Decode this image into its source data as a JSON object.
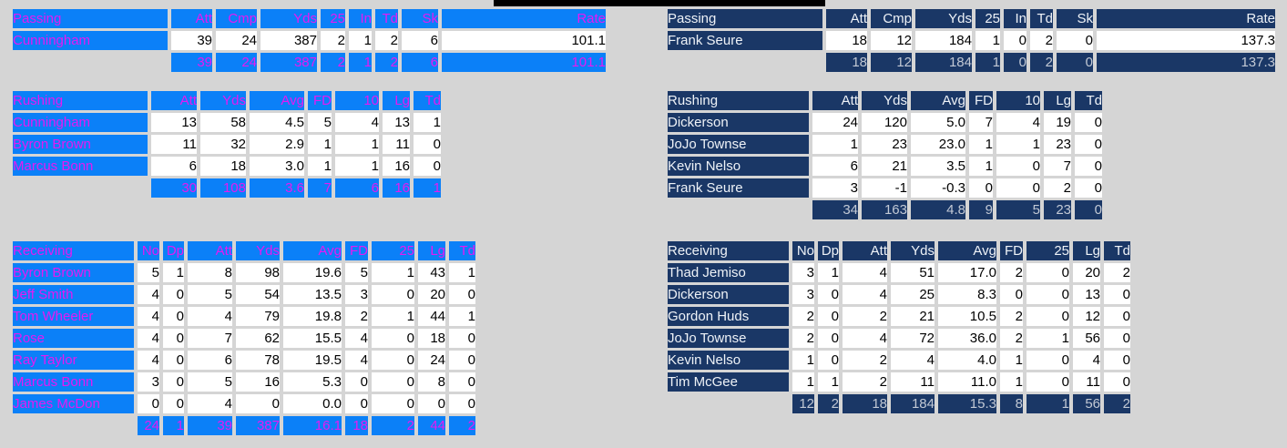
{
  "colors": {
    "background": "#d5d5d5",
    "top_bar": "#000000",
    "left_header_bg": "#0b80f8",
    "left_header_text": "#e619f2",
    "right_header_bg": "#1a3766",
    "right_header_text": "#eef2f7",
    "right_totals_text": "#c2c9d5",
    "data_cell_bg": "#ffffff",
    "data_cell_text": "#000000"
  },
  "teams": [
    {
      "side": "left",
      "tables": [
        {
          "title": "Passing",
          "columns": [
            "Att",
            "Cmp",
            "Yds",
            "25",
            "In",
            "Td",
            "Sk",
            "Rate"
          ],
          "rows": [
            {
              "name": "Cunningham",
              "values": [
                "39",
                "24",
                "387",
                "2",
                "1",
                "2",
                "6",
                "101.1"
              ]
            }
          ],
          "totals": [
            "39",
            "24",
            "387",
            "2",
            "1",
            "2",
            "6",
            "101.1"
          ]
        },
        {
          "title": "Rushing",
          "columns": [
            "Att",
            "Yds",
            "Avg",
            "FD",
            "10",
            "Lg",
            "Td"
          ],
          "rows": [
            {
              "name": "Cunningham",
              "values": [
                "13",
                "58",
                "4.5",
                "5",
                "4",
                "13",
                "1"
              ]
            },
            {
              "name": "Byron Brown",
              "values": [
                "11",
                "32",
                "2.9",
                "1",
                "1",
                "11",
                "0"
              ]
            },
            {
              "name": "Marcus Bonn",
              "values": [
                "6",
                "18",
                "3.0",
                "1",
                "1",
                "16",
                "0"
              ]
            }
          ],
          "totals": [
            "30",
            "108",
            "3.6",
            "7",
            "6",
            "16",
            "1"
          ]
        },
        {
          "title": "Receiving",
          "columns": [
            "No",
            "Dp",
            "Att",
            "Yds",
            "Avg",
            "FD",
            "25",
            "Lg",
            "Td"
          ],
          "rows": [
            {
              "name": "Byron Brown",
              "values": [
                "5",
                "1",
                "8",
                "98",
                "19.6",
                "5",
                "1",
                "43",
                "1"
              ]
            },
            {
              "name": "Jeff Smith",
              "values": [
                "4",
                "0",
                "5",
                "54",
                "13.5",
                "3",
                "0",
                "20",
                "0"
              ]
            },
            {
              "name": "Tom Wheeler",
              "values": [
                "4",
                "0",
                "4",
                "79",
                "19.8",
                "2",
                "1",
                "44",
                "1"
              ]
            },
            {
              "name": "Rose",
              "values": [
                "4",
                "0",
                "7",
                "62",
                "15.5",
                "4",
                "0",
                "18",
                "0"
              ]
            },
            {
              "name": "Ray Taylor",
              "values": [
                "4",
                "0",
                "6",
                "78",
                "19.5",
                "4",
                "0",
                "24",
                "0"
              ]
            },
            {
              "name": "Marcus Bonn",
              "values": [
                "3",
                "0",
                "5",
                "16",
                "5.3",
                "0",
                "0",
                "8",
                "0"
              ]
            },
            {
              "name": "James McDon",
              "values": [
                "0",
                "0",
                "4",
                "0",
                "0.0",
                "0",
                "0",
                "0",
                "0"
              ]
            }
          ],
          "totals": [
            "24",
            "1",
            "39",
            "387",
            "16.1",
            "18",
            "2",
            "44",
            "2"
          ]
        }
      ]
    },
    {
      "side": "right",
      "tables": [
        {
          "title": "Passing",
          "columns": [
            "Att",
            "Cmp",
            "Yds",
            "25",
            "In",
            "Td",
            "Sk",
            "Rate"
          ],
          "rows": [
            {
              "name": "Frank Seure",
              "values": [
                "18",
                "12",
                "184",
                "1",
                "0",
                "2",
                "0",
                "137.3"
              ]
            }
          ],
          "totals": [
            "18",
            "12",
            "184",
            "1",
            "0",
            "2",
            "0",
            "137.3"
          ]
        },
        {
          "title": "Rushing",
          "columns": [
            "Att",
            "Yds",
            "Avg",
            "FD",
            "10",
            "Lg",
            "Td"
          ],
          "rows": [
            {
              "name": "Dickerson",
              "values": [
                "24",
                "120",
                "5.0",
                "7",
                "4",
                "19",
                "0"
              ]
            },
            {
              "name": "JoJo Townse",
              "values": [
                "1",
                "23",
                "23.0",
                "1",
                "1",
                "23",
                "0"
              ]
            },
            {
              "name": "Kevin Nelso",
              "values": [
                "6",
                "21",
                "3.5",
                "1",
                "0",
                "7",
                "0"
              ]
            },
            {
              "name": "Frank Seure",
              "values": [
                "3",
                "-1",
                "-0.3",
                "0",
                "0",
                "2",
                "0"
              ]
            }
          ],
          "totals": [
            "34",
            "163",
            "4.8",
            "9",
            "5",
            "23",
            "0"
          ]
        },
        {
          "title": "Receiving",
          "columns": [
            "No",
            "Dp",
            "Att",
            "Yds",
            "Avg",
            "FD",
            "25",
            "Lg",
            "Td"
          ],
          "rows": [
            {
              "name": "Thad Jemiso",
              "values": [
                "3",
                "1",
                "4",
                "51",
                "17.0",
                "2",
                "0",
                "20",
                "2"
              ]
            },
            {
              "name": "Dickerson",
              "values": [
                "3",
                "0",
                "4",
                "25",
                "8.3",
                "0",
                "0",
                "13",
                "0"
              ]
            },
            {
              "name": "Gordon Huds",
              "values": [
                "2",
                "0",
                "2",
                "21",
                "10.5",
                "2",
                "0",
                "12",
                "0"
              ]
            },
            {
              "name": "JoJo Townse",
              "values": [
                "2",
                "0",
                "4",
                "72",
                "36.0",
                "2",
                "1",
                "56",
                "0"
              ]
            },
            {
              "name": "Kevin Nelso",
              "values": [
                "1",
                "0",
                "2",
                "4",
                "4.0",
                "1",
                "0",
                "4",
                "0"
              ]
            },
            {
              "name": "Tim McGee",
              "values": [
                "1",
                "1",
                "2",
                "11",
                "11.0",
                "1",
                "0",
                "11",
                "0"
              ]
            }
          ],
          "totals": [
            "12",
            "2",
            "18",
            "184",
            "15.3",
            "8",
            "1",
            "56",
            "2"
          ]
        }
      ]
    }
  ]
}
